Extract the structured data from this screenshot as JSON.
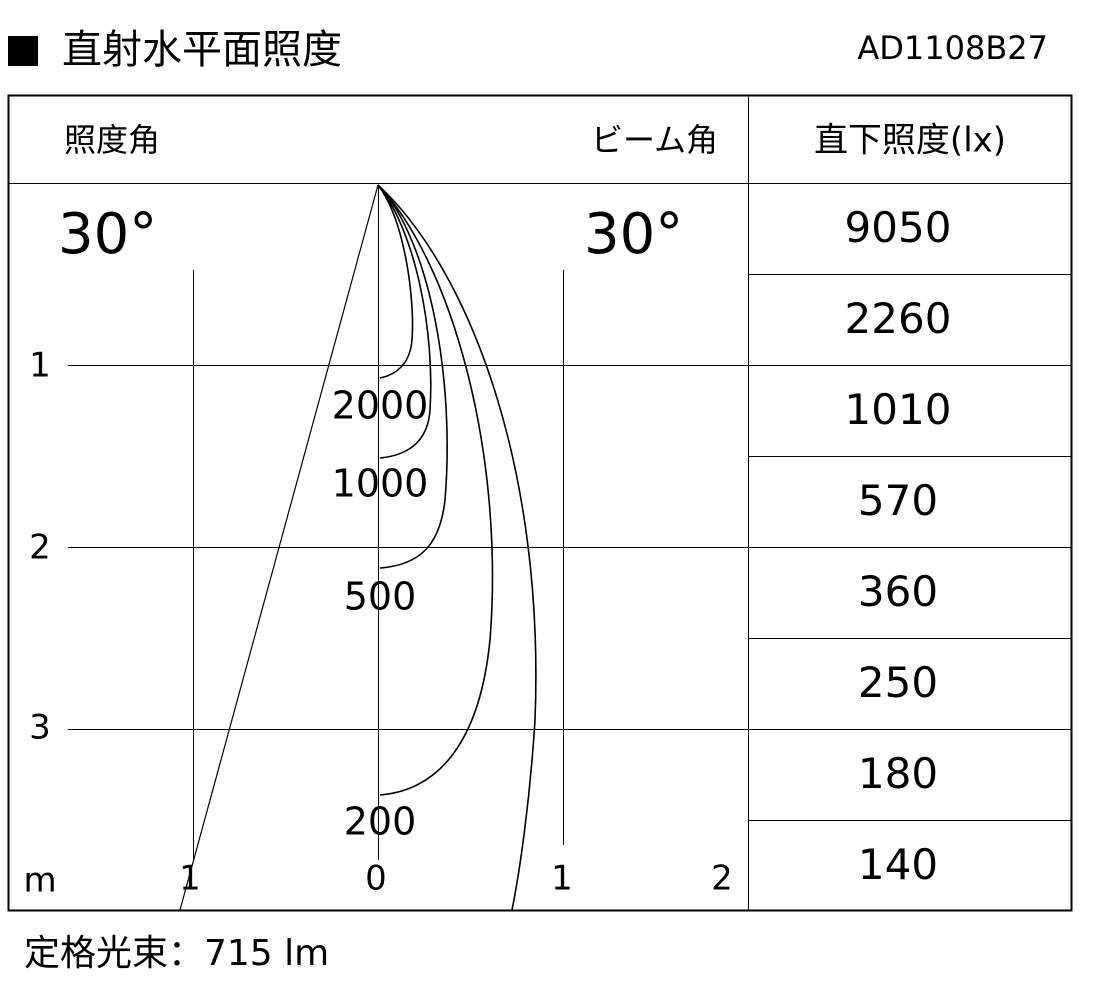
{
  "header": {
    "title": "直射水平面照度",
    "model": "AD1108B27"
  },
  "diagram": {
    "illuminance_angle_label": "照度角",
    "beam_angle_label": "ビーム角",
    "illuminance_angle": "30°",
    "beam_angle": "30°",
    "y_axis_labels": [
      "1",
      "2",
      "3"
    ],
    "unit": "m",
    "x_axis_labels": [
      "1",
      "0",
      "1",
      "2"
    ],
    "contour_labels": [
      "2000",
      "1000",
      "500",
      "200"
    ]
  },
  "table": {
    "header": "直下照度(lx)",
    "rows": [
      "9050",
      "2260",
      "1010",
      "570",
      "360",
      "250",
      "180",
      "140"
    ]
  },
  "footer": {
    "luminous_flux": "定格光束：715 lm"
  }
}
